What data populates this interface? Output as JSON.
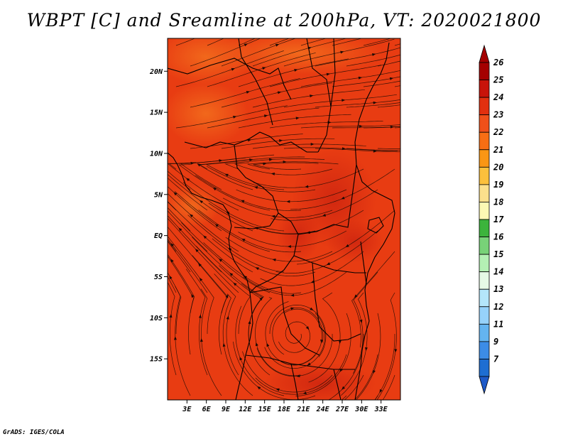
{
  "title": "WBPT [C] and Sreamline at 200hPa, VT: 2020021800",
  "credit": "GrADS: IGES/COLA",
  "map": {
    "field": "WBPT",
    "units": "C",
    "level": "200hPa",
    "valid_time": "2020021800",
    "lon_range": [
      0,
      36
    ],
    "lat_range": [
      -20,
      24
    ],
    "lat_ticks": [
      {
        "value": 20,
        "label": "20N"
      },
      {
        "value": 15,
        "label": "15N"
      },
      {
        "value": 10,
        "label": "10N"
      },
      {
        "value": 5,
        "label": "5N"
      },
      {
        "value": 0,
        "label": "EQ"
      },
      {
        "value": -5,
        "label": "5S"
      },
      {
        "value": -10,
        "label": "10S"
      },
      {
        "value": -15,
        "label": "15S"
      }
    ],
    "lon_ticks": [
      {
        "value": 3,
        "label": "3E"
      },
      {
        "value": 6,
        "label": "6E"
      },
      {
        "value": 9,
        "label": "9E"
      },
      {
        "value": 12,
        "label": "12E"
      },
      {
        "value": 15,
        "label": "15E"
      },
      {
        "value": 18,
        "label": "18E"
      },
      {
        "value": 21,
        "label": "21E"
      },
      {
        "value": 24,
        "label": "24E"
      },
      {
        "value": 27,
        "label": "27E"
      },
      {
        "value": 30,
        "label": "30E"
      },
      {
        "value": 33,
        "label": "33E"
      }
    ],
    "colors": {
      "field_main": "#e83c12",
      "field_warm": "#f0641a",
      "field_hot": "#d32810",
      "streamline": "#1a0a05",
      "border": "#000000"
    }
  },
  "colorbar": {
    "levels": [
      {
        "label": "26",
        "color": "#a50000"
      },
      {
        "label": "25",
        "color": "#c8140a"
      },
      {
        "label": "24",
        "color": "#e2300f"
      },
      {
        "label": "23",
        "color": "#f0501a"
      },
      {
        "label": "22",
        "color": "#f86e14"
      },
      {
        "label": "21",
        "color": "#fa9614"
      },
      {
        "label": "20",
        "color": "#fcc03c"
      },
      {
        "label": "19",
        "color": "#fce08c"
      },
      {
        "label": "18",
        "color": "#fcf8b4"
      },
      {
        "label": "17",
        "color": "#3cb43c"
      },
      {
        "label": "16",
        "color": "#78d278"
      },
      {
        "label": "15",
        "color": "#b4f0b4"
      },
      {
        "label": "14",
        "color": "#e6fae6"
      },
      {
        "label": "13",
        "color": "#b4e6fa"
      },
      {
        "label": "12",
        "color": "#96d2fa"
      },
      {
        "label": "11",
        "color": "#64b4f0"
      },
      {
        "label": "9",
        "color": "#3c8ce6"
      },
      {
        "label": "7",
        "color": "#1e6ed2"
      }
    ],
    "top_color": "#a50000",
    "bottom_color": "#1e5ac8"
  }
}
